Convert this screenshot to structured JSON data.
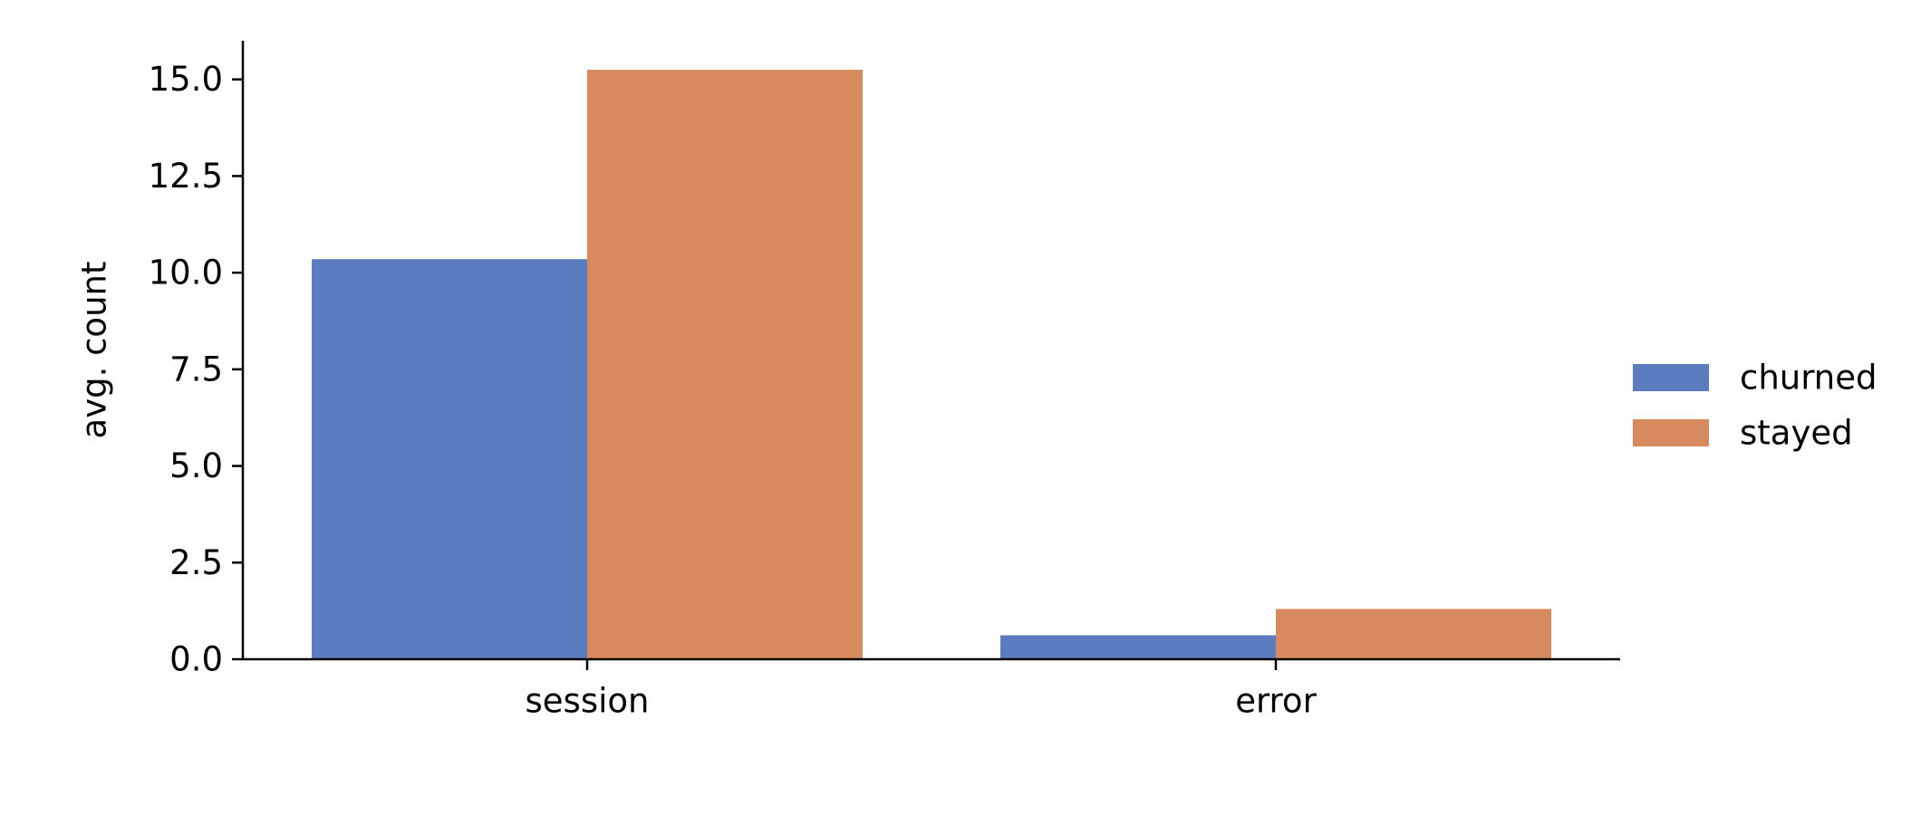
{
  "chart_data": {
    "type": "bar",
    "title": "",
    "xlabel": "",
    "ylabel": "avg. count",
    "categories": [
      "session",
      "error"
    ],
    "series": [
      {
        "name": "churned",
        "color": "#5b7dbf",
        "values": [
          10.35,
          0.62
        ]
      },
      {
        "name": "stayed",
        "color": "#d88a5f",
        "values": [
          15.25,
          1.3
        ]
      }
    ],
    "ylim": [
      0,
      16
    ],
    "yticks": [
      0.0,
      2.5,
      5.0,
      7.5,
      10.0,
      12.5,
      15.0
    ],
    "ytick_labels": [
      "0.0",
      "2.5",
      "5.0",
      "7.5",
      "10.0",
      "12.5",
      "15.0"
    ],
    "grid": false,
    "legend_position": "right"
  }
}
